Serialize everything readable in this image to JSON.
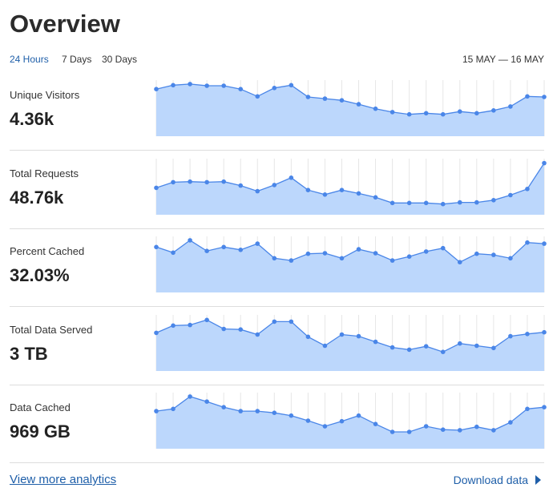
{
  "header": {
    "title": "Overview",
    "tabs": [
      "24 Hours",
      "7 Days",
      "30 Days"
    ],
    "active_tab": 0,
    "date_range": "15 MAY — 16 MAY"
  },
  "metrics": [
    {
      "label": "Unique Visitors",
      "value": "4.36k",
      "sparkline": {
        "type": "line",
        "ylim": [
          0,
          100
        ],
        "color": "#4a86e8",
        "fill": "#bcd7fc",
        "values": [
          84,
          91,
          93,
          90,
          90,
          84,
          71,
          86,
          91,
          70,
          67,
          64,
          57,
          49,
          43,
          39,
          41,
          39,
          44,
          41,
          46,
          53,
          71,
          70
        ]
      }
    },
    {
      "label": "Total Requests",
      "value": "48.76k",
      "sparkline": {
        "type": "line",
        "ylim": [
          0,
          100
        ],
        "color": "#4a86e8",
        "fill": "#bcd7fc",
        "values": [
          48,
          58,
          59,
          58,
          59,
          52,
          42,
          53,
          66,
          44,
          36,
          44,
          38,
          31,
          21,
          21,
          21,
          19,
          22,
          22,
          26,
          35,
          46,
          92
        ]
      }
    },
    {
      "label": "Percent Cached",
      "value": "32.03%",
      "sparkline": {
        "type": "line",
        "ylim": [
          0,
          100
        ],
        "color": "#4a86e8",
        "fill": "#bcd7fc",
        "values": [
          81,
          71,
          93,
          74,
          81,
          76,
          87,
          61,
          57,
          69,
          70,
          61,
          77,
          70,
          57,
          64,
          73,
          79,
          54,
          69,
          67,
          61,
          89,
          87
        ]
      }
    },
    {
      "label": "Total Data Served",
      "value": "3 TB",
      "sparkline": {
        "type": "line",
        "ylim": [
          0,
          100
        ],
        "color": "#4a86e8",
        "fill": "#bcd7fc",
        "values": [
          68,
          81,
          82,
          91,
          75,
          74,
          65,
          88,
          88,
          61,
          45,
          65,
          62,
          52,
          42,
          38,
          44,
          34,
          49,
          45,
          41,
          62,
          66,
          69
        ]
      }
    },
    {
      "label": "Data Cached",
      "value": "969 GB",
      "sparkline": {
        "type": "line",
        "ylim": [
          0,
          100
        ],
        "color": "#4a86e8",
        "fill": "#bcd7fc",
        "values": [
          67,
          71,
          93,
          84,
          74,
          67,
          67,
          64,
          59,
          50,
          40,
          49,
          59,
          44,
          30,
          30,
          40,
          34,
          33,
          39,
          33,
          47,
          71,
          74
        ]
      }
    }
  ],
  "footer": {
    "link": "View more analytics",
    "download": "Download data"
  }
}
